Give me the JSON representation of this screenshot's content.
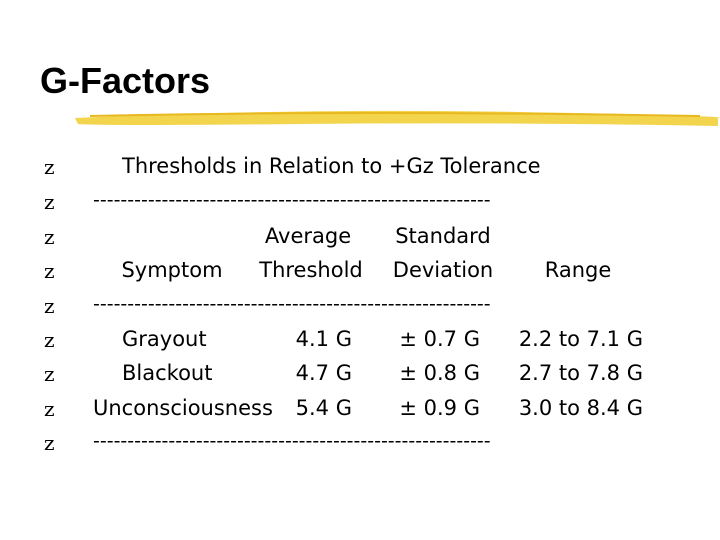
{
  "title": "G-Factors",
  "bullet": "z",
  "subtitle": "Thresholds in Relation to +Gz Tolerance",
  "rule": "----------------------------------------------------------",
  "table": {
    "header_top": [
      "Average",
      "Standard"
    ],
    "columns": [
      "Symptom",
      "Threshold",
      "Deviation",
      "Range"
    ],
    "rows": [
      [
        "Grayout",
        "4.1 G",
        "± 0.7 G",
        "2.2 to 7.1 G"
      ],
      [
        "Blackout",
        "4.7 G",
        "± 0.8 G",
        "2.7 to 7.8 G"
      ],
      [
        "Unconsciousness",
        "5.4 G",
        "± 0.9 G",
        "3.0 to 8.4 G"
      ]
    ]
  }
}
